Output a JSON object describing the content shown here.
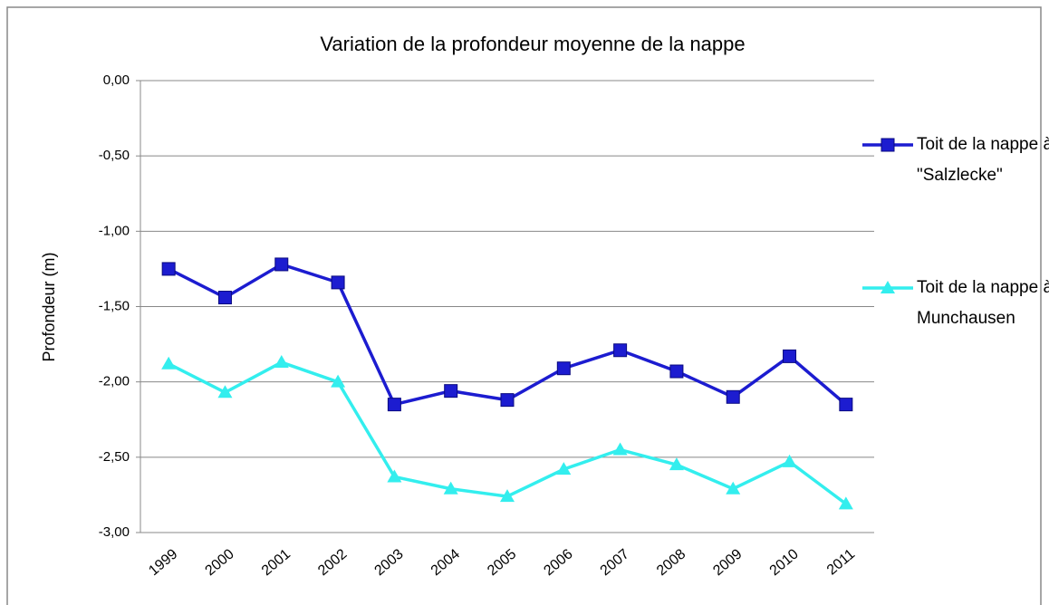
{
  "chart_data": {
    "type": "line",
    "title": "Variation de la profondeur moyenne de la nappe",
    "ylabel": "Profondeur (m)",
    "categories": [
      "1999",
      "2000",
      "2001",
      "2002",
      "2003",
      "2004",
      "2005",
      "2006",
      "2007",
      "2008",
      "2009",
      "2010",
      "2011"
    ],
    "series": [
      {
        "name": "Toit de la nappe à \"Salzlecke\"",
        "color": "#1c1cd0",
        "marker": "square",
        "values": [
          -1.25,
          -1.44,
          -1.22,
          -1.34,
          -2.15,
          -2.06,
          -2.12,
          -1.91,
          -1.79,
          -1.93,
          -2.1,
          -1.83,
          -2.15
        ]
      },
      {
        "name": "Toit de la nappe à Munchausen",
        "color": "#33eeee",
        "marker": "triangle",
        "values": [
          -1.88,
          -2.07,
          -1.87,
          -2.0,
          -2.63,
          -2.71,
          -2.76,
          -2.58,
          -2.45,
          -2.55,
          -2.71,
          -2.53,
          -2.81
        ]
      }
    ],
    "ylim": [
      -3,
      0
    ],
    "yticks": [
      {
        "value": 0,
        "label": "0,00"
      },
      {
        "value": -0.5,
        "label": "-0,50"
      },
      {
        "value": -1,
        "label": "-1,00"
      },
      {
        "value": -1.5,
        "label": "-1,50"
      },
      {
        "value": -2,
        "label": "-2,00"
      },
      {
        "value": -2.5,
        "label": "-2,50"
      },
      {
        "value": -3,
        "label": "-3,00"
      }
    ],
    "grid": true,
    "legend": "right"
  }
}
